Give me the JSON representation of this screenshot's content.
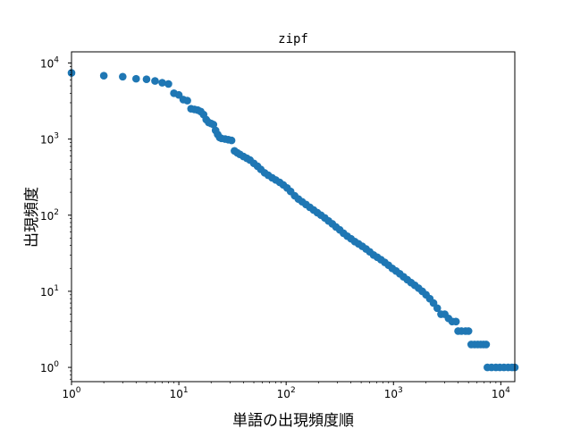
{
  "chart_data": {
    "type": "scatter",
    "title": "zipf",
    "xlabel": "単語の出現頻度順",
    "ylabel": "出現頻度",
    "xscale": "log",
    "yscale": "log",
    "xlim": [
      1,
      13500
    ],
    "ylim": [
      0.65,
      14000
    ],
    "grid": false,
    "color": "#1f77b4",
    "x_ticks": [
      {
        "base": "10",
        "exp": "0",
        "value": 1
      },
      {
        "base": "10",
        "exp": "1",
        "value": 10
      },
      {
        "base": "10",
        "exp": "2",
        "value": 100
      },
      {
        "base": "10",
        "exp": "3",
        "value": 1000
      },
      {
        "base": "10",
        "exp": "4",
        "value": 10000
      }
    ],
    "y_ticks": [
      {
        "base": "10",
        "exp": "0",
        "value": 1
      },
      {
        "base": "10",
        "exp": "1",
        "value": 10
      },
      {
        "base": "10",
        "exp": "2",
        "value": 100
      },
      {
        "base": "10",
        "exp": "3",
        "value": 1000
      },
      {
        "base": "10",
        "exp": "4",
        "value": 10000
      }
    ],
    "series": [
      {
        "points": [
          [
            1,
            7400
          ],
          [
            2,
            6800
          ],
          [
            3,
            6600
          ],
          [
            4,
            6200
          ],
          [
            5,
            6100
          ],
          [
            6,
            5800
          ],
          [
            7,
            5500
          ],
          [
            8,
            5300
          ],
          [
            9,
            4000
          ],
          [
            10,
            3800
          ],
          [
            11,
            3300
          ],
          [
            12,
            3200
          ],
          [
            13,
            2500
          ],
          [
            14,
            2450
          ],
          [
            15,
            2400
          ],
          [
            16,
            2300
          ],
          [
            17,
            2100
          ],
          [
            18,
            1800
          ],
          [
            19,
            1650
          ],
          [
            20,
            1600
          ],
          [
            21,
            1550
          ],
          [
            22,
            1300
          ],
          [
            23,
            1150
          ],
          [
            24,
            1050
          ],
          [
            25,
            1020
          ],
          [
            27,
            1000
          ],
          [
            29,
            980
          ],
          [
            31,
            960
          ],
          [
            33,
            700
          ],
          [
            35,
            660
          ],
          [
            37,
            630
          ],
          [
            40,
            590
          ],
          [
            43,
            560
          ],
          [
            46,
            530
          ],
          [
            50,
            480
          ],
          [
            54,
            440
          ],
          [
            58,
            400
          ],
          [
            63,
            360
          ],
          [
            68,
            335
          ],
          [
            74,
            310
          ],
          [
            80,
            290
          ],
          [
            87,
            270
          ],
          [
            94,
            250
          ],
          [
            102,
            228
          ],
          [
            110,
            205
          ],
          [
            120,
            180
          ],
          [
            130,
            163
          ],
          [
            141,
            150
          ],
          [
            153,
            138
          ],
          [
            166,
            127
          ],
          [
            180,
            117
          ],
          [
            195,
            108
          ],
          [
            211,
            100
          ],
          [
            229,
            92
          ],
          [
            248,
            84
          ],
          [
            269,
            77
          ],
          [
            291,
            70
          ],
          [
            316,
            64
          ],
          [
            342,
            58
          ],
          [
            371,
            53
          ],
          [
            402,
            49
          ],
          [
            436,
            45
          ],
          [
            472,
            42
          ],
          [
            512,
            39
          ],
          [
            555,
            36
          ],
          [
            601,
            33
          ],
          [
            652,
            30
          ],
          [
            706,
            28
          ],
          [
            765,
            26
          ],
          [
            829,
            24
          ],
          [
            899,
            22
          ],
          [
            974,
            20
          ],
          [
            1056,
            18.5
          ],
          [
            1144,
            17
          ],
          [
            1240,
            15.5
          ],
          [
            1344,
            14.2
          ],
          [
            1457,
            13
          ],
          [
            1579,
            12
          ],
          [
            1711,
            11
          ],
          [
            1854,
            10
          ],
          [
            2010,
            9
          ],
          [
            2178,
            8
          ],
          [
            2360,
            7
          ],
          [
            2558,
            6
          ],
          [
            2772,
            5
          ],
          [
            3004,
            5
          ],
          [
            3256,
            4.4
          ],
          [
            3529,
            4
          ],
          [
            3824,
            4
          ],
          [
            4000,
            3
          ],
          [
            4300,
            3
          ],
          [
            4700,
            3
          ],
          [
            5000,
            3
          ],
          [
            5300,
            2
          ],
          [
            5700,
            2
          ],
          [
            6100,
            2
          ],
          [
            6500,
            2
          ],
          [
            6900,
            2
          ],
          [
            7300,
            2
          ],
          [
            7500,
            1
          ],
          [
            8200,
            1
          ],
          [
            9000,
            1
          ],
          [
            9800,
            1
          ],
          [
            10700,
            1
          ],
          [
            11700,
            1
          ],
          [
            12700,
            1
          ],
          [
            13500,
            1
          ]
        ]
      }
    ]
  }
}
